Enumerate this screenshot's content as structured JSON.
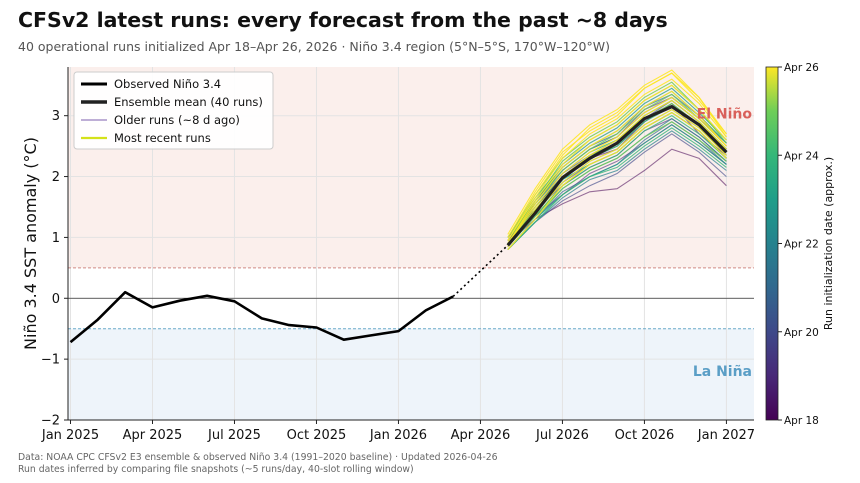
{
  "header": {
    "title": "CFSv2 latest runs: every forecast from the past ~8 days",
    "subtitle": "40 operational runs initialized Apr 18–Apr 26, 2026 · Niño 3.4 region (5°N–5°S, 170°W–120°W)"
  },
  "footer": {
    "line1": "Data: NOAA CPC CFSv2 E3 ensemble & observed Niño 3.4 (1991–2020 baseline)  ·  Updated 2026-04-26",
    "line2": "Run dates inferred by comparing file snapshots (~5 runs/day, 40-slot rolling window)"
  },
  "chart_data": {
    "type": "line",
    "ylabel": "Niño 3.4 SST anomaly (°C)",
    "xlabel": "",
    "ylim": [
      -2,
      3.8
    ],
    "xlim_month_index": [
      0,
      24.5
    ],
    "x_ticks": [
      {
        "label": "Jan 2025",
        "m": 0
      },
      {
        "label": "Apr 2025",
        "m": 3
      },
      {
        "label": "Jul 2025",
        "m": 6
      },
      {
        "label": "Oct 2025",
        "m": 9
      },
      {
        "label": "Jan 2026",
        "m": 12
      },
      {
        "label": "Apr 2026",
        "m": 15
      },
      {
        "label": "Jul 2026",
        "m": 18
      },
      {
        "label": "Oct 2026",
        "m": 21
      },
      {
        "label": "Jan 2027",
        "m": 24
      }
    ],
    "y_ticks": [
      -2,
      -1,
      0,
      1,
      2,
      3
    ],
    "thresholds": {
      "el_nino": 0.5,
      "la_nina": -0.5
    },
    "region_labels": {
      "el_nino": "El Niño",
      "la_nina": "La Niña"
    },
    "observed": {
      "name": "Observed Niño 3.4",
      "m": [
        0,
        1,
        2,
        3,
        4,
        5,
        6,
        7,
        8,
        9,
        10,
        11,
        12,
        13,
        14
      ],
      "values": [
        -0.72,
        -0.35,
        0.1,
        -0.15,
        -0.04,
        0.04,
        -0.05,
        -0.33,
        -0.44,
        -0.48,
        -0.68,
        -0.61,
        -0.54,
        -0.2,
        0.03
      ]
    },
    "observed_bridge": {
      "from": [
        14,
        0.03
      ],
      "to": [
        16,
        0.87
      ]
    },
    "ensemble_mean": {
      "name": "Ensemble mean (40 runs)",
      "m": [
        16,
        17,
        18,
        19,
        20,
        21,
        22,
        23,
        24
      ],
      "values": [
        0.87,
        1.4,
        1.98,
        2.3,
        2.55,
        2.95,
        3.15,
        2.85,
        2.4
      ]
    },
    "forecast_months": [
      16,
      17,
      18,
      19,
      20,
      21,
      22,
      23,
      24
    ],
    "ensemble_runs": [
      {
        "init": "Apr 18",
        "values": [
          0.9,
          1.3,
          1.55,
          1.75,
          1.8,
          2.1,
          2.45,
          2.3,
          1.85
        ]
      },
      {
        "init": "Apr 18",
        "values": [
          0.95,
          1.5,
          2.0,
          2.3,
          2.45,
          2.9,
          3.2,
          2.7,
          2.35
        ]
      },
      {
        "init": "Apr 19",
        "values": [
          1.0,
          1.45,
          1.85,
          2.15,
          2.35,
          2.75,
          2.95,
          2.65,
          2.25
        ]
      },
      {
        "init": "Apr 19",
        "values": [
          0.85,
          1.35,
          1.7,
          2.05,
          2.25,
          2.55,
          2.85,
          2.55,
          2.2
        ]
      },
      {
        "init": "Apr 19",
        "values": [
          0.9,
          1.6,
          2.1,
          2.45,
          2.65,
          3.1,
          3.3,
          2.95,
          2.55
        ]
      },
      {
        "init": "Apr 20",
        "values": [
          0.8,
          1.25,
          1.6,
          1.85,
          2.05,
          2.4,
          2.7,
          2.4,
          2.0
        ]
      },
      {
        "init": "Apr 20",
        "values": [
          0.95,
          1.55,
          2.05,
          2.35,
          2.6,
          2.95,
          3.25,
          2.9,
          2.45
        ]
      },
      {
        "init": "Apr 20",
        "values": [
          0.85,
          1.4,
          1.9,
          2.2,
          2.4,
          2.8,
          3.05,
          2.75,
          2.3
        ]
      },
      {
        "init": "Apr 21",
        "values": [
          0.9,
          1.45,
          1.95,
          2.3,
          2.5,
          2.9,
          3.2,
          2.85,
          2.4
        ]
      },
      {
        "init": "Apr 21",
        "values": [
          0.8,
          1.3,
          1.75,
          2.0,
          2.2,
          2.6,
          2.9,
          2.6,
          2.2
        ]
      },
      {
        "init": "Apr 21",
        "values": [
          0.95,
          1.6,
          2.15,
          2.5,
          2.7,
          3.15,
          3.35,
          3.0,
          2.55
        ]
      },
      {
        "init": "Apr 22",
        "values": [
          0.85,
          1.35,
          1.8,
          2.1,
          2.3,
          2.65,
          2.95,
          2.65,
          2.25
        ]
      },
      {
        "init": "Apr 22",
        "values": [
          0.9,
          1.5,
          2.0,
          2.35,
          2.55,
          3.0,
          3.25,
          2.9,
          2.45
        ]
      },
      {
        "init": "Apr 22",
        "values": [
          0.8,
          1.25,
          1.65,
          1.95,
          2.1,
          2.45,
          2.75,
          2.45,
          2.1
        ]
      },
      {
        "init": "Apr 22",
        "values": [
          0.95,
          1.55,
          2.1,
          2.45,
          2.65,
          3.05,
          3.3,
          2.95,
          2.5
        ]
      },
      {
        "init": "Apr 23",
        "values": [
          0.85,
          1.4,
          1.9,
          2.25,
          2.45,
          2.85,
          3.1,
          2.8,
          2.35
        ]
      },
      {
        "init": "Apr 23",
        "values": [
          0.9,
          1.45,
          1.95,
          2.2,
          2.4,
          2.8,
          3.05,
          2.75,
          2.3
        ]
      },
      {
        "init": "Apr 23",
        "values": [
          0.8,
          1.3,
          1.7,
          2.0,
          2.2,
          2.55,
          2.85,
          2.55,
          2.2
        ]
      },
      {
        "init": "Apr 23",
        "values": [
          1.0,
          1.65,
          2.2,
          2.55,
          2.8,
          3.2,
          3.45,
          3.05,
          2.6
        ]
      },
      {
        "init": "Apr 24",
        "values": [
          0.85,
          1.35,
          1.85,
          2.15,
          2.35,
          2.75,
          3.0,
          2.7,
          2.3
        ]
      },
      {
        "init": "Apr 24",
        "values": [
          0.9,
          1.5,
          2.05,
          2.4,
          2.6,
          3.0,
          3.25,
          2.9,
          2.45
        ]
      },
      {
        "init": "Apr 24",
        "values": [
          0.8,
          1.25,
          1.7,
          2.0,
          2.15,
          2.5,
          2.8,
          2.5,
          2.15
        ]
      },
      {
        "init": "Apr 24",
        "values": [
          0.95,
          1.6,
          2.15,
          2.5,
          2.75,
          3.15,
          3.4,
          3.0,
          2.55
        ]
      },
      {
        "init": "Apr 24",
        "values": [
          0.85,
          1.4,
          1.95,
          2.3,
          2.5,
          2.9,
          3.15,
          2.85,
          2.4
        ]
      },
      {
        "init": "Apr 25",
        "values": [
          0.9,
          1.45,
          2.0,
          2.35,
          2.55,
          2.95,
          3.2,
          2.85,
          2.4
        ]
      },
      {
        "init": "Apr 25",
        "values": [
          0.8,
          1.3,
          1.8,
          2.1,
          2.3,
          2.65,
          2.9,
          2.6,
          2.25
        ]
      },
      {
        "init": "Apr 25",
        "values": [
          1.0,
          1.7,
          2.3,
          2.65,
          2.9,
          3.3,
          3.55,
          3.1,
          2.6
        ]
      },
      {
        "init": "Apr 25",
        "values": [
          0.85,
          1.35,
          1.85,
          2.2,
          2.4,
          2.8,
          3.05,
          2.75,
          2.3
        ]
      },
      {
        "init": "Apr 25",
        "values": [
          0.9,
          1.55,
          2.1,
          2.45,
          2.7,
          3.1,
          3.35,
          2.95,
          2.5
        ]
      },
      {
        "init": "Apr 25",
        "values": [
          0.95,
          1.6,
          2.25,
          2.6,
          2.85,
          3.25,
          3.5,
          3.1,
          2.55
        ]
      },
      {
        "init": "Apr 26",
        "values": [
          0.85,
          1.4,
          1.9,
          2.25,
          2.45,
          2.85,
          3.1,
          2.8,
          2.35
        ]
      },
      {
        "init": "Apr 26",
        "values": [
          0.9,
          1.5,
          2.05,
          2.4,
          2.65,
          3.05,
          3.3,
          2.95,
          2.5
        ]
      },
      {
        "init": "Apr 26",
        "values": [
          1.05,
          1.8,
          2.45,
          2.85,
          3.1,
          3.5,
          3.75,
          3.3,
          2.7
        ]
      },
      {
        "init": "Apr 26",
        "values": [
          0.8,
          1.3,
          1.85,
          2.2,
          2.4,
          2.8,
          3.05,
          2.75,
          2.3
        ]
      },
      {
        "init": "Apr 26",
        "values": [
          0.95,
          1.65,
          2.3,
          2.7,
          2.95,
          3.35,
          3.6,
          3.2,
          2.65
        ]
      },
      {
        "init": "Apr 26",
        "values": [
          0.9,
          1.55,
          2.15,
          2.5,
          2.75,
          3.15,
          3.4,
          3.0,
          2.5
        ]
      },
      {
        "init": "Apr 26",
        "values": [
          1.0,
          1.75,
          2.4,
          2.75,
          3.0,
          3.45,
          3.7,
          3.25,
          2.7
        ]
      },
      {
        "init": "Apr 26",
        "values": [
          0.85,
          1.45,
          2.0,
          2.35,
          2.6,
          3.0,
          3.25,
          2.9,
          2.45
        ]
      },
      {
        "init": "Apr 26",
        "values": [
          0.9,
          1.6,
          2.2,
          2.6,
          2.85,
          3.25,
          3.5,
          3.1,
          2.6
        ]
      },
      {
        "init": "Apr 26",
        "values": [
          0.95,
          1.7,
          2.35,
          2.8,
          3.05,
          3.45,
          3.7,
          3.3,
          2.65
        ]
      }
    ],
    "legend": {
      "location": "upper-left",
      "entries": [
        {
          "label": "Observed Niño 3.4",
          "style": "observed"
        },
        {
          "label": "Ensemble mean (40 runs)",
          "style": "mean"
        },
        {
          "label": "Older runs (~8 d ago)",
          "style": "older"
        },
        {
          "label": "Most recent runs",
          "style": "recent"
        }
      ]
    },
    "colorbar": {
      "label": "Run initialization date (approx.)",
      "ticks": [
        "Apr 18",
        "Apr 20",
        "Apr 22",
        "Apr 24",
        "Apr 26"
      ]
    },
    "colors": {
      "observed": "#000000",
      "mean": "#222222",
      "el_nino_fill": "#fbefec",
      "la_nina_fill": "#eef4fa",
      "el_nino_text": "#d9605a",
      "la_nina_text": "#5a9ec6",
      "el_nino_line": "#d08a85",
      "la_nina_line": "#6aaac8",
      "older_legend": "#a894c9",
      "recent_legend": "#d4e21a"
    }
  }
}
